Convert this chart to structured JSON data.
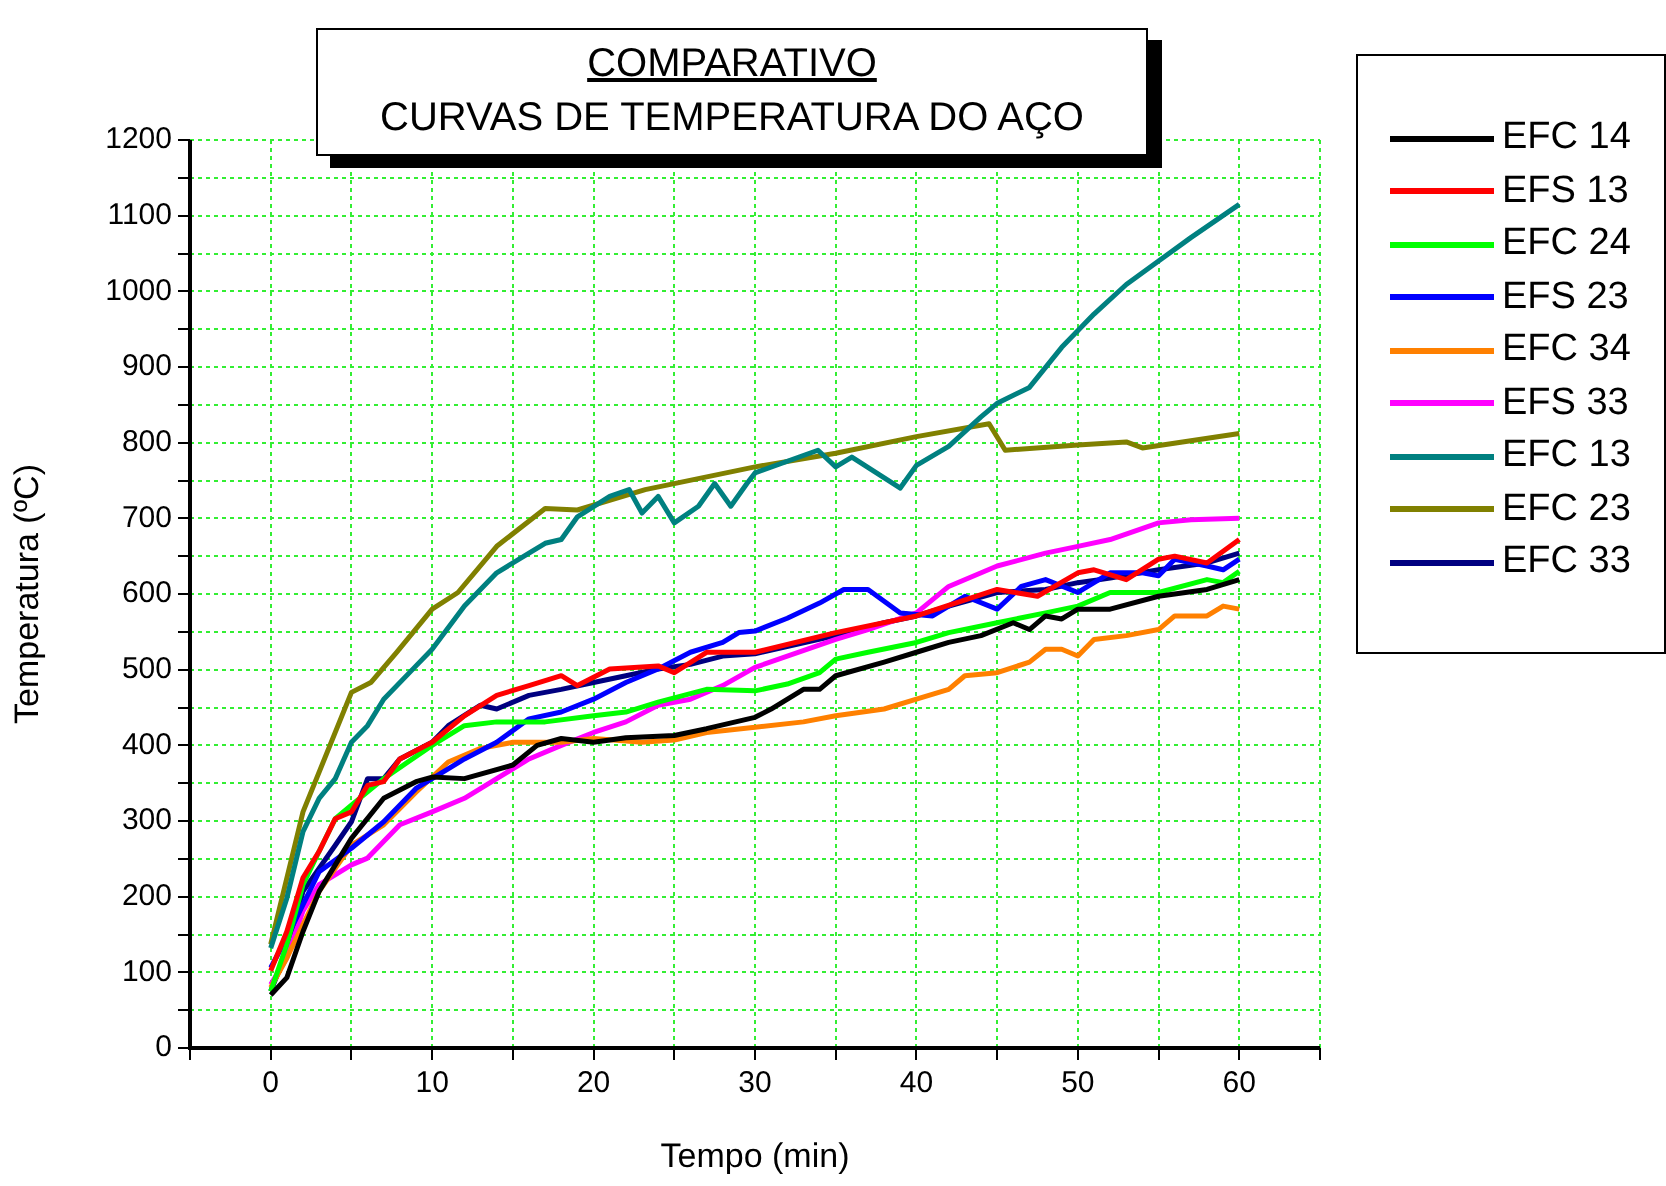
{
  "chart_data": {
    "type": "line",
    "title": "COMPARATIVO",
    "subtitle": "CURVAS DE TEMPERATURA DO AÇO",
    "xlabel": "Tempo (min)",
    "ylabel": "Temperatura (ºC)",
    "xlim": [
      -5,
      65
    ],
    "xticks": [
      {
        "value": -5,
        "label": null
      },
      0,
      {
        "value": 5,
        "label": null
      },
      10,
      {
        "value": 15,
        "label": null
      },
      20,
      {
        "value": 25,
        "label": null
      },
      30,
      {
        "value": 35,
        "label": null
      },
      40,
      {
        "value": 45,
        "label": null
      },
      50,
      {
        "value": 55,
        "label": null
      },
      60,
      {
        "value": 65,
        "label": null
      }
    ],
    "ylim": [
      0,
      1200
    ],
    "yticks": [
      0,
      {
        "value": 50,
        "label": null
      },
      100,
      {
        "value": 150,
        "label": null
      },
      200,
      {
        "value": 250,
        "label": null
      },
      300,
      {
        "value": 350,
        "label": null
      },
      400,
      {
        "value": 450,
        "label": null
      },
      500,
      {
        "value": 550,
        "label": null
      },
      600,
      {
        "value": 650,
        "label": null
      },
      700,
      {
        "value": 750,
        "label": null
      },
      800,
      {
        "value": 850,
        "label": null
      },
      900,
      {
        "value": 950,
        "label": null
      },
      1000,
      {
        "value": 1050,
        "label": null
      },
      1100,
      {
        "value": 1150,
        "label": null
      },
      1200
    ],
    "grid": true,
    "legend": "top right",
    "marker": "none",
    "line_style": "solid",
    "series": [
      {
        "name": "EFC 14",
        "color": "#000000",
        "x": [
          0,
          1,
          2,
          3,
          5,
          7,
          9,
          10,
          12,
          15,
          16.5,
          18,
          20,
          22,
          25,
          27,
          30,
          31,
          33,
          34,
          35,
          38,
          40,
          42,
          44,
          46,
          47,
          48,
          49,
          50,
          52,
          55,
          58,
          60
        ],
        "values": [
          70,
          93,
          154,
          207,
          277,
          330,
          352,
          358,
          356,
          374,
          400,
          409,
          404,
          410,
          413,
          422,
          437,
          448,
          474,
          474,
          492,
          510,
          523,
          536,
          545,
          562,
          553,
          571,
          567,
          580,
          580,
          597,
          606,
          619
        ]
      },
      {
        "name": "EFS 13",
        "color": "#ff0000",
        "x": [
          0,
          1,
          2,
          3,
          4,
          5,
          6,
          7,
          8,
          10,
          12,
          14,
          16,
          18,
          19,
          21,
          24,
          25,
          27,
          30,
          35,
          40,
          45,
          47.5,
          50,
          51,
          53,
          55,
          56,
          58,
          60
        ],
        "values": [
          102,
          154,
          225,
          260,
          303,
          312,
          347,
          352,
          382,
          404,
          439,
          466,
          479,
          492,
          479,
          501,
          505,
          496,
          523,
          523,
          549,
          571,
          606,
          597,
          628,
          632,
          619,
          646,
          650,
          641,
          672
        ]
      },
      {
        "name": "EFC 24",
        "color": "#00ff00",
        "x": [
          0,
          1,
          2,
          3,
          4,
          5,
          7,
          10,
          12,
          14,
          17,
          20,
          22,
          24,
          27,
          30,
          32,
          34,
          35,
          37,
          40,
          42,
          45,
          48,
          50,
          52,
          55,
          58,
          59,
          60
        ],
        "values": [
          75,
          137,
          216,
          260,
          303,
          321,
          356,
          400,
          426,
          431,
          431,
          439,
          444,
          457,
          474,
          472,
          481,
          496,
          514,
          523,
          536,
          549,
          562,
          575,
          584,
          602,
          602,
          619,
          615,
          630
        ]
      },
      {
        "name": "EFS 23",
        "color": "#0000ff",
        "x": [
          0,
          1,
          3,
          5,
          7,
          9,
          10,
          12,
          14,
          16,
          18,
          20,
          22,
          24,
          26,
          28,
          29,
          30,
          32,
          34,
          35.5,
          37,
          39,
          41,
          43,
          45,
          46.5,
          48,
          50,
          52,
          54,
          55,
          56,
          58,
          59,
          60
        ],
        "values": [
          106,
          146,
          233,
          264,
          299,
          343,
          356,
          382,
          404,
          435,
          444,
          461,
          483,
          501,
          523,
          536,
          549,
          551,
          568,
          588,
          606,
          606,
          575,
          571,
          597,
          580,
          610,
          619,
          602,
          628,
          628,
          624,
          646,
          637,
          632,
          646
        ]
      },
      {
        "name": "EFC 34",
        "color": "#ff8000",
        "x": [
          0,
          1,
          3,
          5,
          7,
          9,
          11,
          13,
          15,
          18,
          20,
          23,
          25,
          27,
          30,
          33,
          35,
          38,
          40,
          42,
          43,
          45,
          47,
          48,
          49,
          50,
          51,
          53,
          55,
          56,
          58,
          59,
          60
        ],
        "values": [
          80,
          119,
          207,
          268,
          295,
          338,
          378,
          396,
          404,
          404,
          409,
          404,
          407,
          417,
          424,
          431,
          439,
          448,
          461,
          474,
          492,
          496,
          510,
          527,
          527,
          518,
          540,
          545,
          553,
          571,
          571,
          584,
          580
        ]
      },
      {
        "name": "EFS 33",
        "color": "#ff00ff",
        "x": [
          0,
          1,
          2,
          3,
          5,
          6,
          8,
          10,
          12,
          14,
          16,
          18,
          20,
          22,
          24,
          26,
          28,
          30,
          35,
          37,
          40,
          42,
          45,
          48,
          50,
          52,
          55,
          57,
          60
        ],
        "values": [
          84,
          119,
          181,
          216,
          242,
          251,
          295,
          312,
          330,
          356,
          382,
          400,
          417,
          431,
          453,
          461,
          479,
          503,
          540,
          553,
          575,
          610,
          637,
          654,
          663,
          672,
          694,
          698,
          700
        ]
      },
      {
        "name": "EFC 13",
        "color": "#008080",
        "x": [
          0,
          1,
          2,
          3,
          4,
          5,
          6,
          7,
          9,
          10,
          12,
          14,
          16,
          17,
          18,
          19,
          21,
          22.2,
          23,
          24,
          25,
          26.5,
          27.5,
          28.5,
          29.5,
          30,
          33.9,
          35,
          36,
          39,
          40,
          42,
          44,
          45,
          47,
          49,
          51,
          53,
          55,
          57,
          60
        ],
        "values": [
          132,
          198,
          286,
          330,
          356,
          404,
          426,
          461,
          505,
          527,
          584,
          628,
          654,
          667,
          672,
          702,
          729,
          738,
          707,
          729,
          694,
          716,
          746,
          716,
          746,
          760,
          790,
          768,
          781,
          740,
          770,
          795,
          834,
          852,
          873,
          926,
          970,
          1009,
          1040,
          1071,
          1115
        ]
      },
      {
        "name": "EFC 23",
        "color": "#808000",
        "x": [
          0,
          2,
          5,
          6.2,
          7.8,
          10,
          11.6,
          14,
          17,
          19,
          23.2,
          30,
          35,
          40,
          44.5,
          45.5,
          50,
          53,
          54,
          60
        ],
        "values": [
          137,
          312,
          470,
          483,
          523,
          580,
          602,
          663,
          713,
          711,
          738,
          768,
          786,
          808,
          825,
          790,
          797,
          801,
          793,
          812
        ]
      },
      {
        "name": "EFC 33",
        "color": "#000080",
        "x": [
          0,
          1,
          2,
          4,
          5,
          6,
          7,
          8,
          10,
          11,
          13,
          14,
          16,
          18,
          20,
          22,
          24,
          26,
          28,
          30,
          35,
          38,
          40,
          42,
          45,
          48,
          50,
          52,
          55,
          58,
          60
        ],
        "values": [
          75,
          128,
          207,
          268,
          299,
          356,
          356,
          382,
          404,
          426,
          453,
          448,
          466,
          474,
          483,
          492,
          501,
          507,
          518,
          521,
          545,
          562,
          571,
          584,
          602,
          606,
          615,
          621,
          632,
          641,
          654
        ]
      }
    ]
  }
}
